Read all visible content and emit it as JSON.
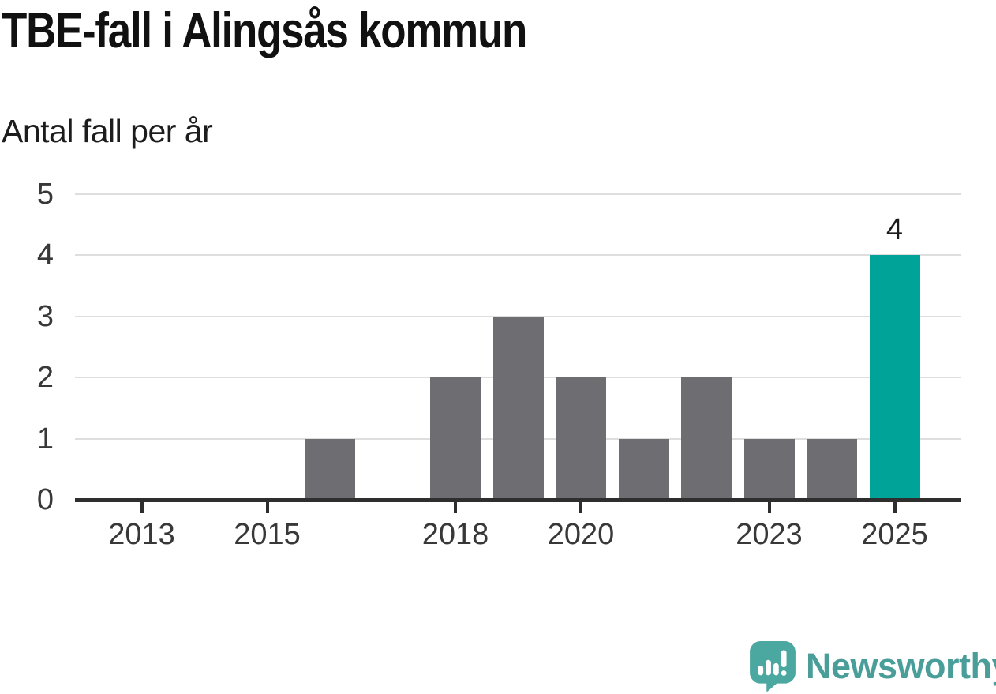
{
  "header": {
    "title": "TBE-fall i Alingsås kommun",
    "subtitle": "Antal fall per år"
  },
  "chart_data": {
    "type": "bar",
    "title": "TBE-fall i Alingsås kommun",
    "ylabel": "Antal fall per år",
    "categories": [
      2012,
      2013,
      2014,
      2015,
      2016,
      2017,
      2018,
      2019,
      2020,
      2021,
      2022,
      2023,
      2024,
      2025
    ],
    "values": [
      0,
      0,
      0,
      0,
      1,
      0,
      2,
      3,
      2,
      1,
      2,
      1,
      1,
      4
    ],
    "x_tick_labels": [
      "2013",
      "2015",
      "2018",
      "2020",
      "2023",
      "2025"
    ],
    "y_ticks": [
      0,
      1,
      2,
      3,
      4,
      5
    ],
    "ylim": [
      0,
      5
    ],
    "grid": "horizontal",
    "legend": "none",
    "bar_color": "#6e6e72",
    "highlight_category": 2025,
    "highlight_color": "#00a398",
    "data_label": {
      "category": 2025,
      "text": "4"
    }
  },
  "footer": {
    "brand": "Newsworthy",
    "brand_color": "#4a9e99",
    "logo_icon": "speech-bubble-bar-chart-icon"
  }
}
